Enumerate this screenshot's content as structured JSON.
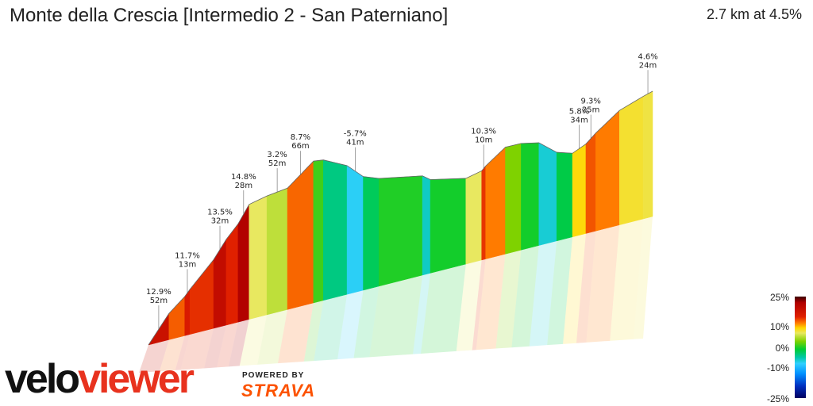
{
  "header": {
    "title": "Monte della Crescia [Intermedio 2 - San Paterniano]",
    "summary": "2.7 km at 4.5%"
  },
  "legend": {
    "labels": [
      "25%",
      "10%",
      "0%",
      "-10%",
      "-25%"
    ]
  },
  "brand": {
    "velo": "velo",
    "viewer": "viewer",
    "powered_by": "POWERED BY",
    "strava": "STRAVA"
  },
  "colors": {
    "brand_red": "#e8321e",
    "strava_orange": "#fc5200"
  },
  "chart_data": {
    "type": "area",
    "title": "Monte della Crescia [Intermedio 2 - San Paterniano]",
    "subtitle": "2.7 km at 4.5%",
    "style": "3d-gradient-profile",
    "distance_km": 2.7,
    "avg_gradient_pct": 4.5,
    "segments": [
      {
        "gradient": 12.9,
        "length_m": 52
      },
      {
        "gradient": 9.0,
        "length_m": 40
      },
      {
        "gradient": 11.7,
        "length_m": 13
      },
      {
        "gradient": 10.5,
        "length_m": 60
      },
      {
        "gradient": 13.5,
        "length_m": 32
      },
      {
        "gradient": 11.0,
        "length_m": 30
      },
      {
        "gradient": 14.8,
        "length_m": 28
      },
      {
        "gradient": 4.0,
        "length_m": 45
      },
      {
        "gradient": 3.2,
        "length_m": 52
      },
      {
        "gradient": 8.7,
        "length_m": 66
      },
      {
        "gradient": 1.0,
        "length_m": 25
      },
      {
        "gradient": -2.0,
        "length_m": 60
      },
      {
        "gradient": -5.7,
        "length_m": 41
      },
      {
        "gradient": -1.0,
        "length_m": 40
      },
      {
        "gradient": 0.5,
        "length_m": 110
      },
      {
        "gradient": -4.0,
        "length_m": 20
      },
      {
        "gradient": 0.3,
        "length_m": 90
      },
      {
        "gradient": 4.0,
        "length_m": 40
      },
      {
        "gradient": 10.3,
        "length_m": 10
      },
      {
        "gradient": 8.0,
        "length_m": 50
      },
      {
        "gradient": 2.0,
        "length_m": 40
      },
      {
        "gradient": 0.3,
        "length_m": 45
      },
      {
        "gradient": -4.5,
        "length_m": 45
      },
      {
        "gradient": -0.5,
        "length_m": 40
      },
      {
        "gradient": 5.8,
        "length_m": 34
      },
      {
        "gradient": 9.3,
        "length_m": 25
      },
      {
        "gradient": 8.0,
        "length_m": 60
      },
      {
        "gradient": 5.0,
        "length_m": 60
      },
      {
        "gradient": 4.6,
        "length_m": 24
      }
    ],
    "annotations": [
      {
        "gradient": "12.9%",
        "length": "52m",
        "segment": 0
      },
      {
        "gradient": "11.7%",
        "length": "13m",
        "segment": 2
      },
      {
        "gradient": "13.5%",
        "length": "32m",
        "segment": 4
      },
      {
        "gradient": "14.8%",
        "length": "28m",
        "segment": 6
      },
      {
        "gradient": "3.2%",
        "length": "52m",
        "segment": 8
      },
      {
        "gradient": "8.7%",
        "length": "66m",
        "segment": 9
      },
      {
        "gradient": "-5.7%",
        "length": "41m",
        "segment": 12
      },
      {
        "gradient": "10.3%",
        "length": "10m",
        "segment": 18
      },
      {
        "gradient": "5.8%",
        "length": "34m",
        "segment": 24
      },
      {
        "gradient": "9.3%",
        "length": "25m",
        "segment": 25
      },
      {
        "gradient": "4.6%",
        "length": "24m",
        "segment": 28
      }
    ],
    "color_scale": {
      "min_pct": -25,
      "max_pct": 25,
      "ticks": [
        25,
        10,
        0,
        -10,
        -25
      ]
    }
  }
}
